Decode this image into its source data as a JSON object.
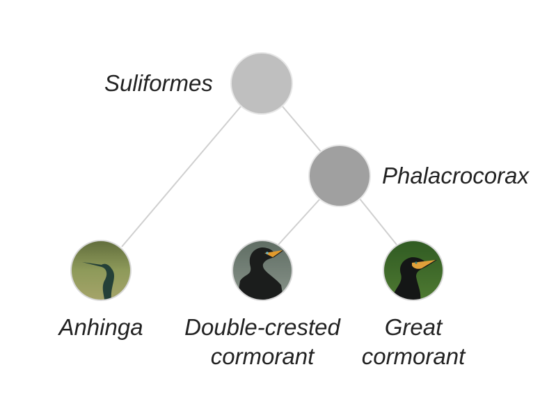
{
  "nodes": {
    "root": {
      "label": "Suliformes",
      "color": "#bfbfbf"
    },
    "inner": {
      "label": "Phalacrocorax",
      "color": "#a0a0a0"
    }
  },
  "leaves": [
    {
      "line1": "Anhinga",
      "line2": ""
    },
    {
      "line1": "Double-crested",
      "line2": "cormorant"
    },
    {
      "line1": "Great",
      "line2": "cormorant"
    }
  ],
  "edge_color": "#cfcfcf"
}
